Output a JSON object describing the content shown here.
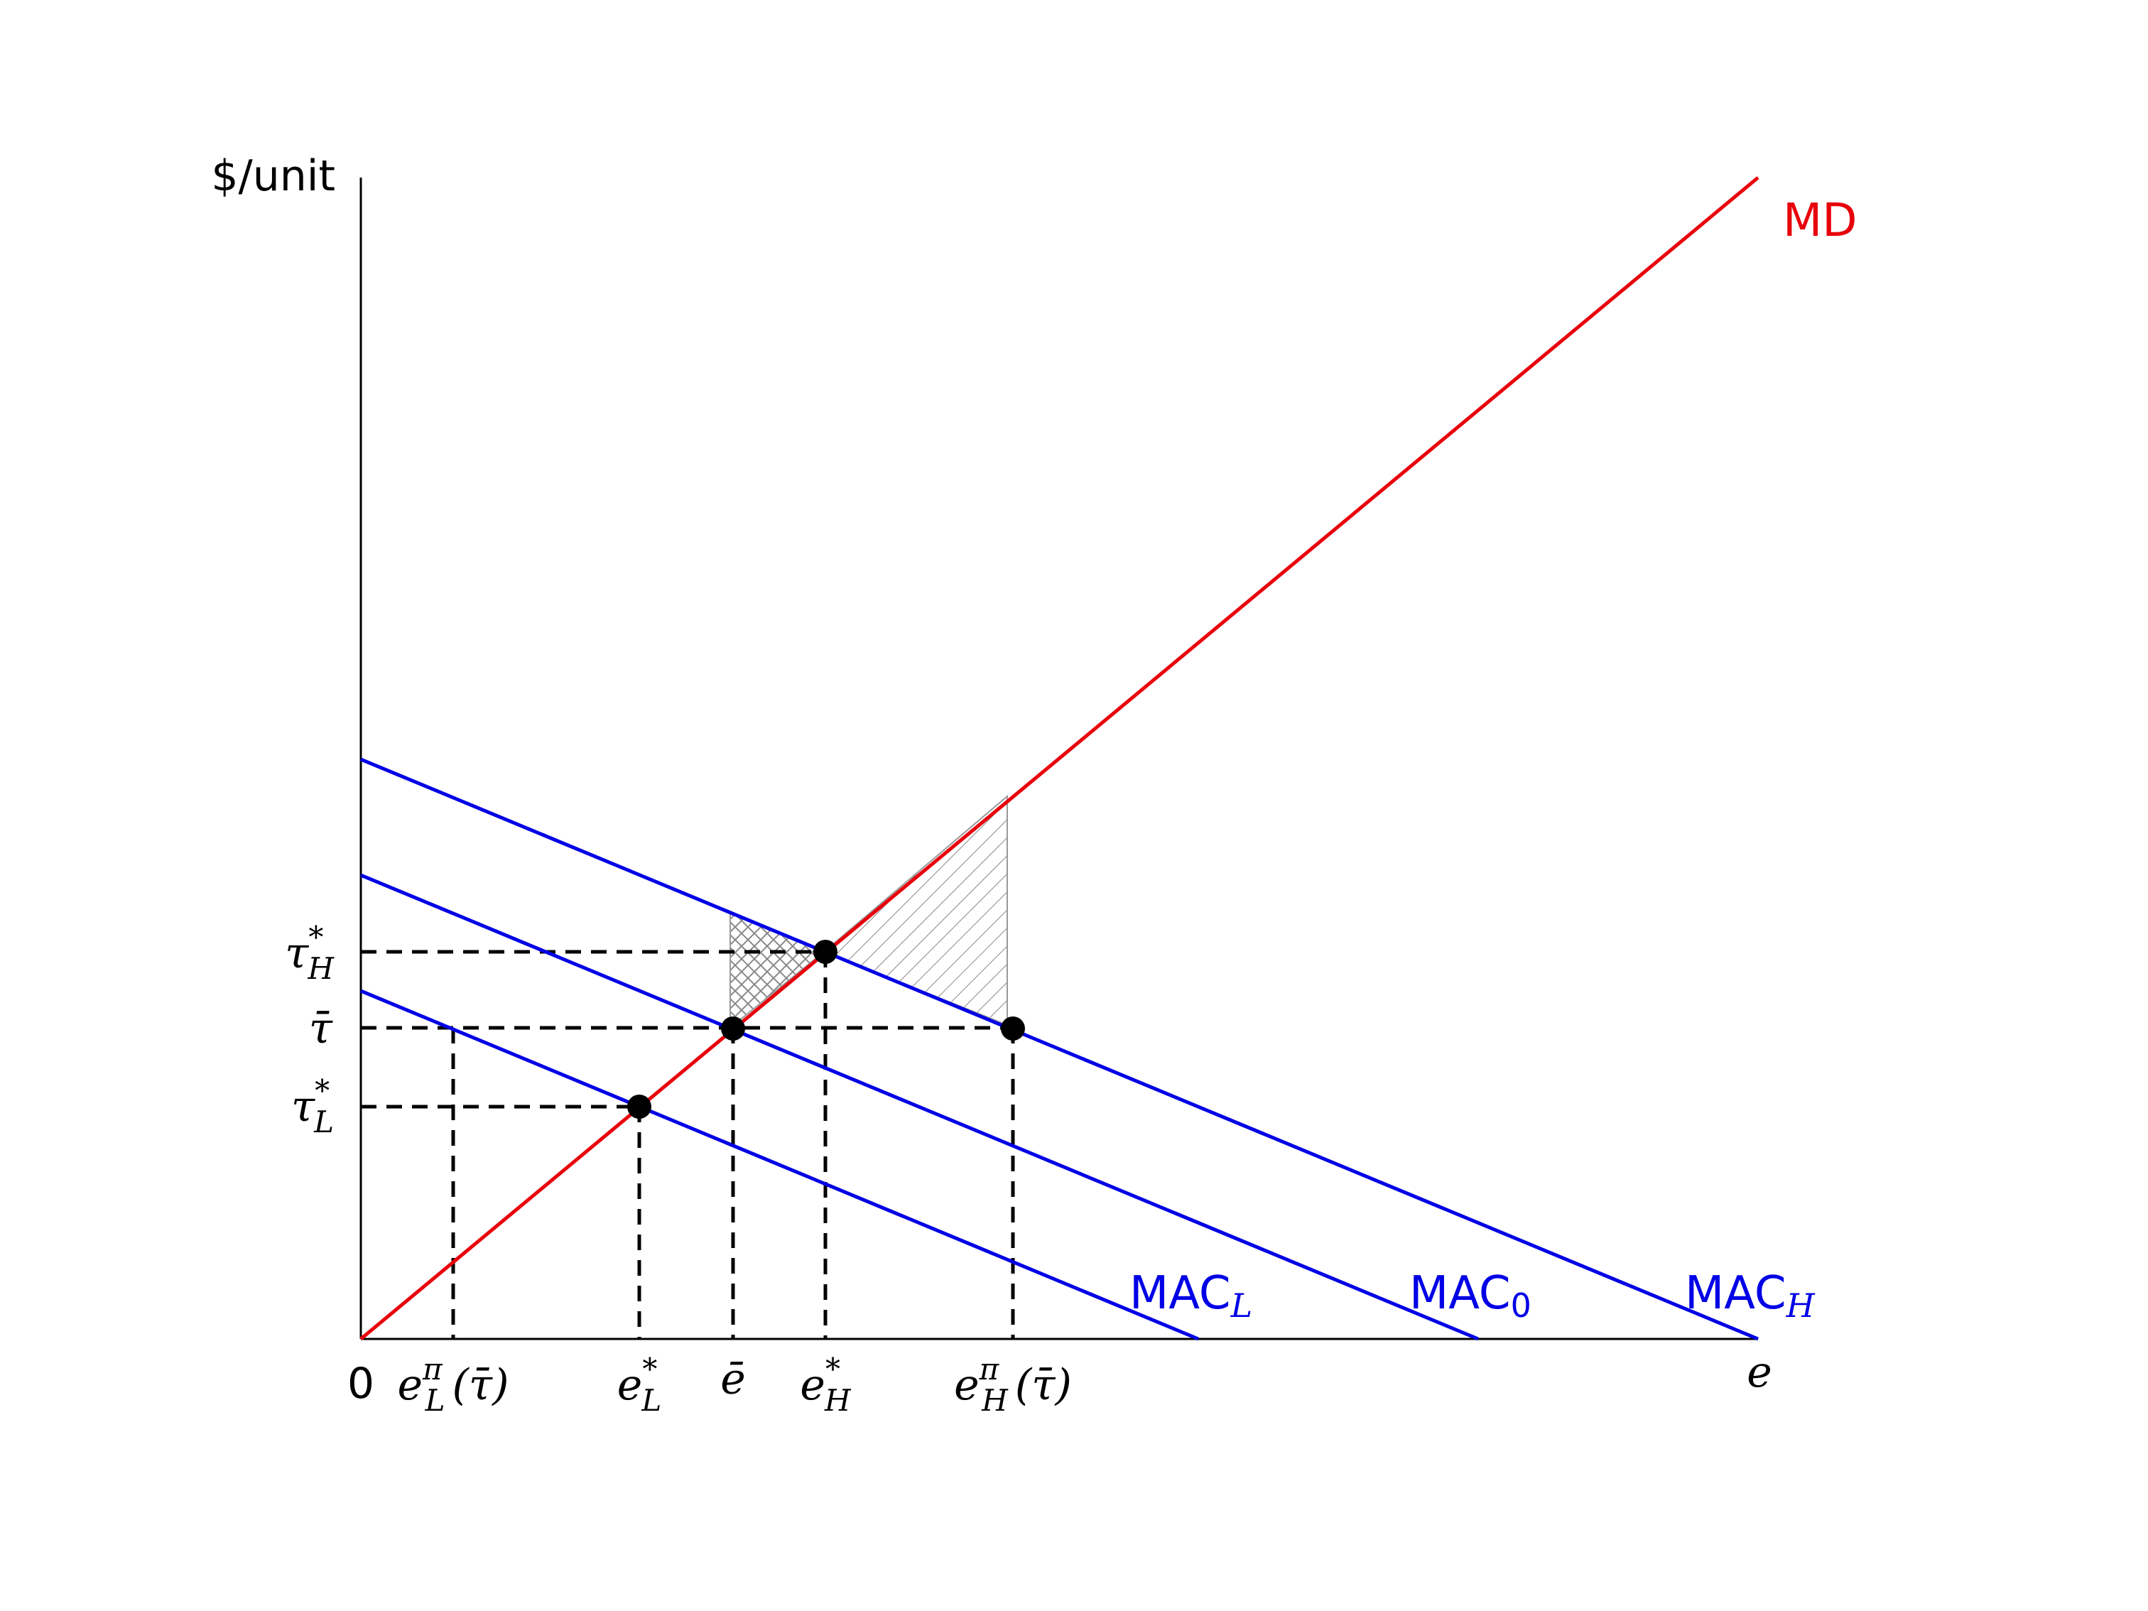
{
  "diagram": {
    "y_axis_label": "$/unit",
    "x_axis_label": "e",
    "origin_label": "0",
    "colors": {
      "md": "#e8000b",
      "mac": "#0000e6",
      "axis": "#000000",
      "hatch": "#888888"
    },
    "curves": {
      "md": "MD",
      "mac_l_base": "MAC",
      "mac_l_sub": "L",
      "mac_0_base": "MAC",
      "mac_0_sub": "0",
      "mac_h_base": "MAC",
      "mac_h_sub": "H"
    },
    "y_ticks": {
      "tau_h": {
        "base": "τ",
        "sup": "*",
        "sub": "H"
      },
      "tau_bar": {
        "base": "τ̄"
      },
      "tau_l": {
        "base": "τ",
        "sup": "*",
        "sub": "L"
      }
    },
    "x_ticks": {
      "e_pi_l": {
        "base": "e",
        "sup": "π",
        "sub": "L",
        "tail": "(τ̄)"
      },
      "e_l": {
        "base": "e",
        "sup": "*",
        "sub": "L"
      },
      "e_bar": {
        "base": "ē"
      },
      "e_h": {
        "base": "e",
        "sup": "*",
        "sub": "H"
      },
      "e_pi_h": {
        "base": "e",
        "sup": "π",
        "sub": "H",
        "tail": "(τ̄)"
      }
    }
  }
}
